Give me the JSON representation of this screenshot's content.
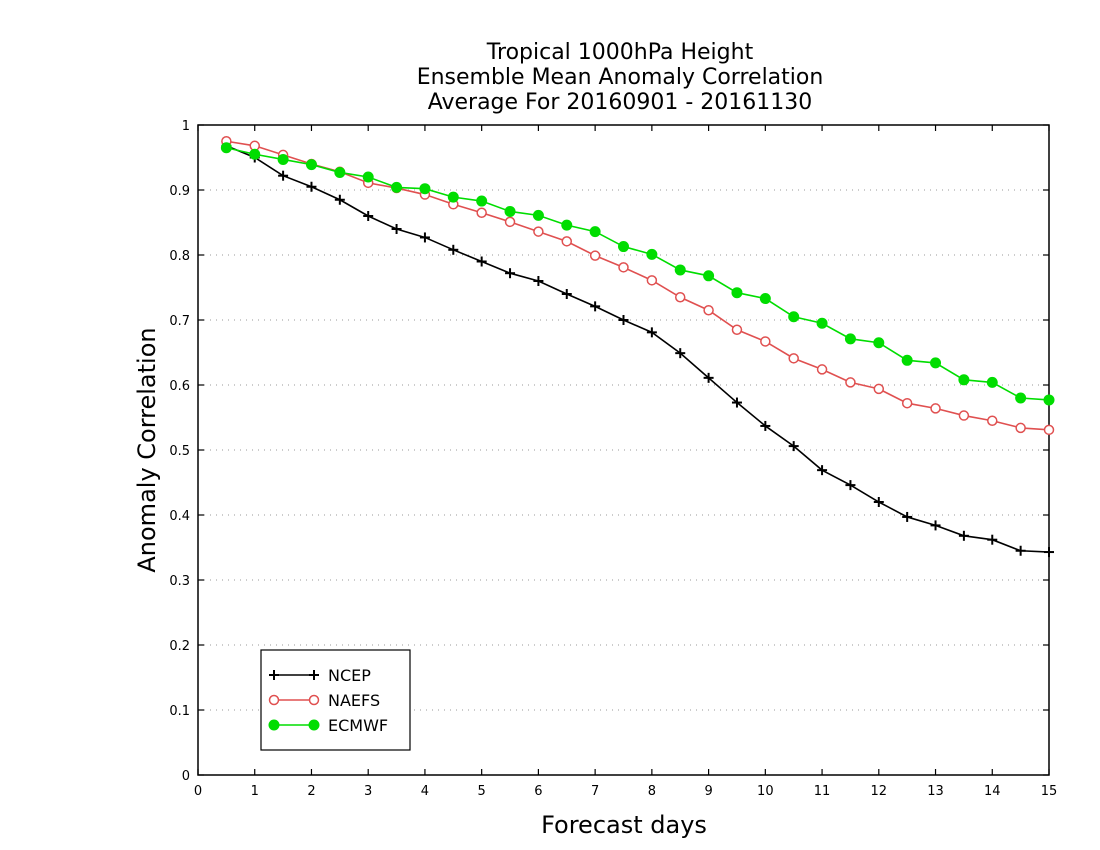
{
  "chart_data": {
    "type": "line",
    "title_lines": [
      "Tropical 1000hPa Height",
      "Ensemble Mean Anomaly Correlation",
      "Average For 20160901 - 20161130"
    ],
    "xlabel": "Forecast days",
    "ylabel": "Anomaly Correlation",
    "xlim": [
      0,
      15
    ],
    "ylim": [
      0,
      1
    ],
    "xticks": [
      "0",
      "1",
      "2",
      "3",
      "4",
      "5",
      "6",
      "7",
      "8",
      "9",
      "10",
      "11",
      "12",
      "13",
      "14",
      "15"
    ],
    "yticks": [
      "0",
      "0.1",
      "0.2",
      "0.3",
      "0.4",
      "0.5",
      "0.6",
      "0.7",
      "0.8",
      "0.9",
      "1"
    ],
    "grid": "horizontal dotted",
    "legend_position": "bottom-left",
    "x": [
      0.5,
      1,
      1.5,
      2,
      2.5,
      3,
      3.5,
      4,
      4.5,
      5,
      5.5,
      6,
      6.5,
      7,
      7.5,
      8,
      8.5,
      9,
      9.5,
      10,
      10.5,
      11,
      11.5,
      12,
      12.5,
      13,
      13.5,
      14,
      14.5,
      15
    ],
    "series": [
      {
        "name": "NCEP",
        "color": "#000000",
        "marker": "plus",
        "values": [
          0.968,
          0.95,
          0.922,
          0.905,
          0.885,
          0.86,
          0.84,
          0.827,
          0.808,
          0.79,
          0.772,
          0.76,
          0.74,
          0.721,
          0.7,
          0.681,
          0.649,
          0.611,
          0.573,
          0.537,
          0.506,
          0.469,
          0.446,
          0.42,
          0.397,
          0.384,
          0.368,
          0.362,
          0.345,
          0.343
        ]
      },
      {
        "name": "NAEFS",
        "color": "#e05050",
        "marker": "open-circle",
        "values": [
          0.975,
          0.968,
          0.954,
          0.94,
          0.928,
          0.911,
          0.903,
          0.893,
          0.878,
          0.865,
          0.851,
          0.836,
          0.821,
          0.799,
          0.781,
          0.761,
          0.735,
          0.715,
          0.685,
          0.667,
          0.641,
          0.624,
          0.604,
          0.594,
          0.572,
          0.564,
          0.553,
          0.545,
          0.534,
          0.531
        ]
      },
      {
        "name": "ECMWF",
        "color": "#00dd00",
        "marker": "filled-circle",
        "values": [
          0.965,
          0.955,
          0.947,
          0.939,
          0.927,
          0.92,
          0.904,
          0.902,
          0.889,
          0.883,
          0.867,
          0.861,
          0.846,
          0.836,
          0.813,
          0.801,
          0.777,
          0.768,
          0.742,
          0.733,
          0.705,
          0.695,
          0.671,
          0.665,
          0.638,
          0.634,
          0.608,
          0.604,
          0.58,
          0.577
        ]
      }
    ]
  }
}
